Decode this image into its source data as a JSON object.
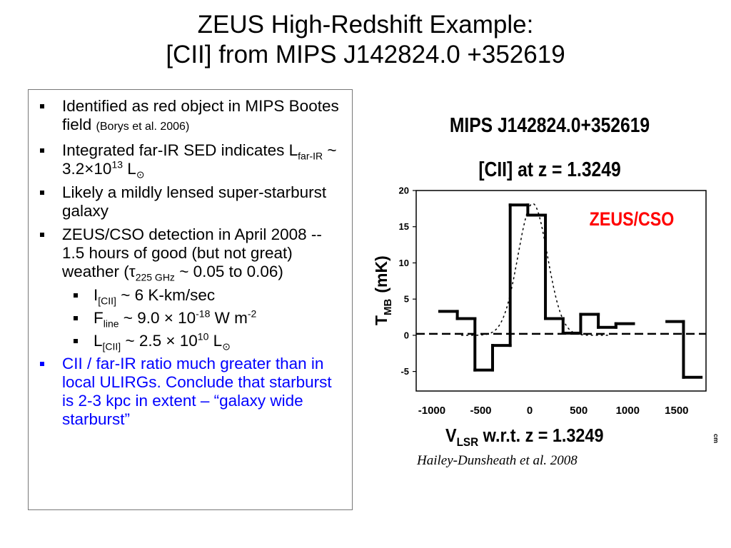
{
  "slide": {
    "title_line1": "ZEUS High-Redshift Example:",
    "title_line2": "[CII] from MIPS J142824.0 +352619"
  },
  "bullets": [
    {
      "text": "Identified as red object in MIPS Bootes field",
      "ref": "(Borys et al. 2006)"
    },
    {
      "prefix": "Integrated far-IR SED indicates L",
      "sub": "far-IR",
      "mid": " ~ 3.2×10",
      "sup": "13",
      "suffix": " L",
      "unit_sub": "⊙"
    },
    {
      "text": "Likely a mildly lensed super-starburst galaxy"
    },
    {
      "prefix": "ZEUS/CSO detection in April 2008 -- 1.5 hours of good (but not great) weather (τ",
      "sub": "225 GHz",
      "suffix": " ~ 0.05 to 0.06)"
    },
    {
      "prefix": "I",
      "sub": "[CII]",
      "suffix": " ~ 6 K-km/sec"
    },
    {
      "prefix": "F",
      "sub": "line",
      "mid": " ~ 9.0 × 10",
      "sup": "-18",
      "suffix": " W m",
      "sup2": "-2"
    },
    {
      "prefix": "L",
      "sub": "[CII]",
      "mid": " ~ 2.5 × 10",
      "sup": "10",
      "suffix": " L",
      "unit_sub": "⊙"
    },
    {
      "text": "CII / far-IR ratio much greater than in local ULIRGs. Conclude that starburst is 2-3 kpc in extent – “galaxy wide starburst”"
    }
  ],
  "chart_data": {
    "type": "line",
    "title": "MIPS J142824.0+352619",
    "subtitle": "[CII] at z = 1.3249",
    "annotation": "ZEUS/CSO",
    "ylabel_main": "T",
    "ylabel_sub": "MB",
    "ylabel_unit": "(mK)",
    "xlabel_main": "V",
    "xlabel_sub": "LSR",
    "xlabel_rest": " w.r.t. z = 1.3249",
    "xlim": [
      -1160,
      1800
    ],
    "ylim": [
      -7.7,
      20
    ],
    "x_ticks": [
      -1000,
      -500,
      0,
      500,
      1000,
      1500
    ],
    "x_tick_labels": [
      "-1000",
      "-500",
      "0",
      "500",
      "1000",
      "1500"
    ],
    "y_ticks": [
      -5,
      0,
      5,
      10,
      15,
      20
    ],
    "y_tick_labels": [
      "-5",
      "0",
      "5",
      "10",
      "15",
      "20"
    ],
    "colors": {
      "annotation": "#ff0000",
      "text_blue": "#0000ff"
    },
    "series": [
      {
        "style": "histogram",
        "segments": [
          {
            "x": [
              -920,
              -740
            ],
            "y": 3.3
          },
          {
            "x": [
              -740,
              -560
            ],
            "y": 2.3
          },
          {
            "x": [
              -560,
              -380
            ],
            "y": -4.8
          },
          {
            "x": [
              -380,
              -200
            ],
            "y": -1.4
          },
          {
            "x": [
              -200,
              -20
            ],
            "y": 18.0
          },
          {
            "x": [
              -20,
              160
            ],
            "y": 16.6
          },
          {
            "x": [
              160,
              340
            ],
            "y": 2.3
          },
          {
            "x": [
              340,
              520
            ],
            "y": 0.3
          },
          {
            "x": [
              520,
              700
            ],
            "y": 2.9
          },
          {
            "x": [
              700,
              880
            ],
            "y": 1.1
          },
          {
            "x": [
              880,
              1060
            ],
            "y": 1.6
          },
          {
            "x": [
              1400,
              1570
            ],
            "y": 1.9
          },
          {
            "x": [
              1570,
              1750
            ],
            "y": -5.8
          }
        ]
      },
      {
        "style": "gaussian_fit",
        "amplitude": 18.2,
        "center": 30,
        "sigma": 150
      },
      {
        "style": "baseline",
        "y": 0.2
      }
    ]
  },
  "credit": "Hailey-Dunsheath et al. 2008"
}
